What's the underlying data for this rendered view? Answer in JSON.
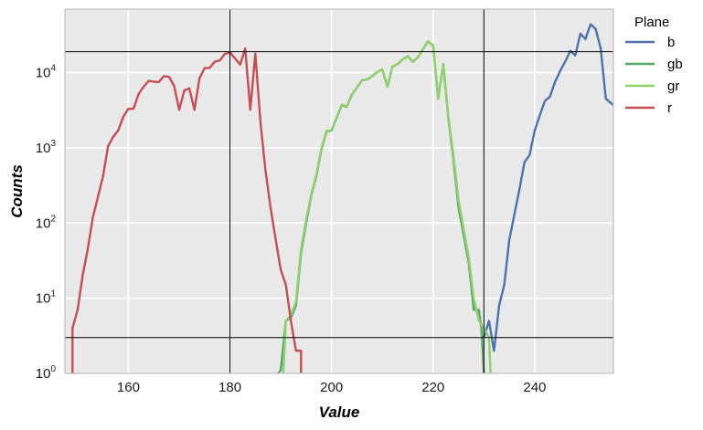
{
  "chart_data": {
    "type": "line",
    "xlabel": "Value",
    "ylabel": "Counts",
    "x_ticks": [
      "160",
      "180",
      "200",
      "220",
      "240"
    ],
    "y_ticks": [
      "10^0",
      "10^1",
      "10^2",
      "10^3",
      "10^4"
    ],
    "xlim": [
      147.5,
      255.5
    ],
    "ylim": [
      1,
      70000
    ],
    "y_scale": "log",
    "grid": true,
    "legend_position": "right",
    "legend_title": "Plane",
    "reference_lines": {
      "vertical": [
        180,
        230
      ],
      "horizontal": [
        3,
        19000
      ]
    },
    "series": [
      {
        "name": "b",
        "color": "#4c72b0",
        "points": [
          [
            230,
            3
          ],
          [
            231,
            5
          ],
          [
            232,
            2
          ],
          [
            233,
            8
          ],
          [
            234,
            15
          ],
          [
            235,
            60
          ],
          [
            236,
            130
          ],
          [
            237,
            280
          ],
          [
            238,
            650
          ],
          [
            239,
            800
          ],
          [
            240,
            1700
          ],
          [
            241,
            2700
          ],
          [
            242,
            4200
          ],
          [
            243,
            4800
          ],
          [
            244,
            7500
          ],
          [
            245,
            10500
          ],
          [
            246,
            14000
          ],
          [
            247,
            19500
          ],
          [
            248,
            17000
          ],
          [
            249,
            33000
          ],
          [
            250,
            28000
          ],
          [
            251,
            44000
          ],
          [
            252,
            38000
          ],
          [
            253,
            21000
          ],
          [
            254,
            4500
          ],
          [
            255.5,
            3700
          ]
        ]
      },
      {
        "name": "gb",
        "color": "#55a868",
        "points": [
          [
            189.5,
            1
          ],
          [
            190,
            1.1
          ],
          [
            191,
            5
          ],
          [
            192,
            5.5
          ],
          [
            193,
            8
          ],
          [
            194,
            40
          ],
          [
            195,
            100
          ],
          [
            196,
            230
          ],
          [
            197,
            420
          ],
          [
            198,
            950
          ],
          [
            199,
            1650
          ],
          [
            200,
            1700
          ],
          [
            201,
            2500
          ],
          [
            202,
            3700
          ],
          [
            203,
            3500
          ],
          [
            204,
            5100
          ],
          [
            205,
            6300
          ],
          [
            206,
            7900
          ],
          [
            207,
            8100
          ],
          [
            208,
            9000
          ],
          [
            209,
            10200
          ],
          [
            210,
            11000
          ],
          [
            211,
            6500
          ],
          [
            212,
            12000
          ],
          [
            213,
            13000
          ],
          [
            214,
            15000
          ],
          [
            215,
            16500
          ],
          [
            216,
            14000
          ],
          [
            217,
            16000
          ],
          [
            218,
            20500
          ],
          [
            219,
            26000
          ],
          [
            220,
            23000
          ],
          [
            221,
            4500
          ],
          [
            222,
            13000
          ],
          [
            223,
            2500
          ],
          [
            224,
            700
          ],
          [
            225,
            160
          ],
          [
            226,
            70
          ],
          [
            227,
            30
          ],
          [
            228,
            7
          ],
          [
            229,
            7
          ],
          [
            229.5,
            4
          ],
          [
            230,
            1
          ]
        ]
      },
      {
        "name": "gr",
        "color": "#8fd16a",
        "points": [
          [
            190.5,
            1
          ],
          [
            191,
            5
          ],
          [
            192,
            6
          ],
          [
            193,
            9
          ],
          [
            194,
            45
          ],
          [
            195,
            110
          ],
          [
            196,
            240
          ],
          [
            197,
            440
          ],
          [
            198,
            980
          ],
          [
            199,
            1680
          ],
          [
            200,
            1720
          ],
          [
            201,
            2550
          ],
          [
            202,
            3750
          ],
          [
            203,
            3550
          ],
          [
            204,
            5150
          ],
          [
            205,
            6350
          ],
          [
            206,
            7950
          ],
          [
            207,
            8150
          ],
          [
            208,
            9050
          ],
          [
            209,
            10250
          ],
          [
            210,
            11050
          ],
          [
            211,
            6550
          ],
          [
            212,
            12050
          ],
          [
            213,
            13050
          ],
          [
            214,
            15050
          ],
          [
            215,
            16550
          ],
          [
            216,
            14050
          ],
          [
            217,
            16050
          ],
          [
            218,
            20600
          ],
          [
            219,
            26100
          ],
          [
            220,
            23100
          ],
          [
            221,
            4550
          ],
          [
            222,
            13100
          ],
          [
            223,
            2600
          ],
          [
            224,
            800
          ],
          [
            225,
            200
          ],
          [
            226,
            85
          ],
          [
            227,
            35
          ],
          [
            228,
            10
          ],
          [
            229,
            5
          ],
          [
            230,
            4
          ],
          [
            231,
            3
          ],
          [
            231.3,
            1
          ]
        ]
      },
      {
        "name": "r",
        "color": "#c44e52",
        "points": [
          [
            149,
            1
          ],
          [
            149,
            4
          ],
          [
            150,
            7
          ],
          [
            151,
            20
          ],
          [
            152,
            45
          ],
          [
            153,
            120
          ],
          [
            154,
            220
          ],
          [
            155,
            420
          ],
          [
            156,
            1050
          ],
          [
            157,
            1400
          ],
          [
            158,
            1700
          ],
          [
            159,
            2600
          ],
          [
            160,
            3300
          ],
          [
            161,
            3300
          ],
          [
            162,
            5200
          ],
          [
            163,
            6500
          ],
          [
            164,
            7800
          ],
          [
            165,
            7600
          ],
          [
            166,
            7500
          ],
          [
            167,
            9000
          ],
          [
            168,
            8800
          ],
          [
            169,
            6700
          ],
          [
            170,
            3200
          ],
          [
            171,
            5800
          ],
          [
            172,
            6200
          ],
          [
            173,
            3200
          ],
          [
            174,
            8400
          ],
          [
            175,
            11500
          ],
          [
            176,
            11600
          ],
          [
            177,
            14000
          ],
          [
            178,
            14500
          ],
          [
            179,
            17800
          ],
          [
            180,
            18500
          ],
          [
            181,
            15500
          ],
          [
            182,
            12800
          ],
          [
            183,
            21000
          ],
          [
            184,
            3200
          ],
          [
            185,
            18000
          ],
          [
            186,
            2200
          ],
          [
            187,
            500
          ],
          [
            188,
            160
          ],
          [
            189,
            60
          ],
          [
            190,
            24
          ],
          [
            191,
            15
          ],
          [
            192,
            5
          ],
          [
            193,
            2
          ],
          [
            194,
            2
          ],
          [
            194,
            1
          ]
        ]
      }
    ]
  }
}
